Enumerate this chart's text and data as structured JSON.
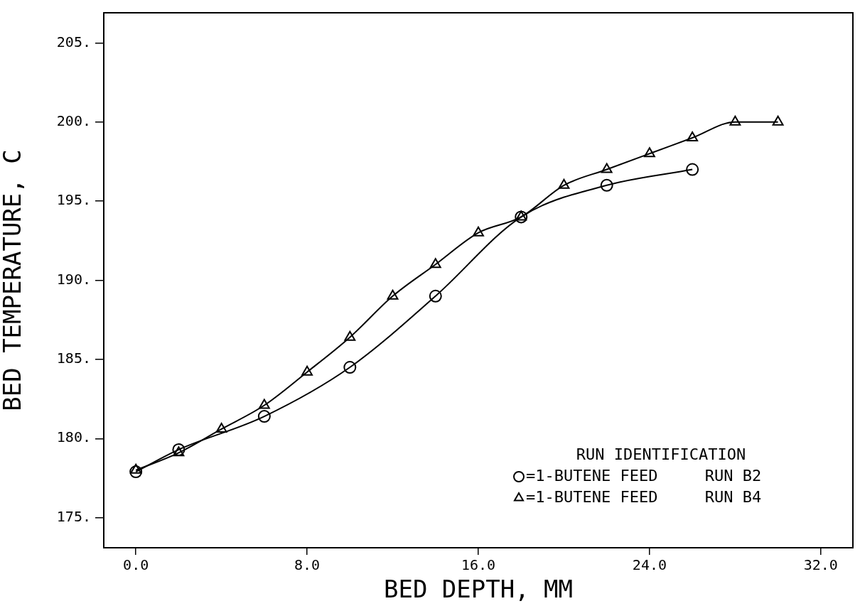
{
  "chart_data": {
    "type": "line",
    "xlabel": "BED DEPTH, MM",
    "ylabel": "BED TEMPERATURE, C",
    "legend_title": "RUN IDENTIFICATION",
    "legend": "bottom right",
    "xlim": [
      -1.5,
      33.5
    ],
    "ylim": [
      173.1,
      206.9
    ],
    "xticks": [
      {
        "value": 0,
        "label": "0.0"
      },
      {
        "value": 8,
        "label": "8.0"
      },
      {
        "value": 16,
        "label": "16.0"
      },
      {
        "value": 24,
        "label": "24.0"
      },
      {
        "value": 32,
        "label": "32.0"
      }
    ],
    "yticks": [
      {
        "value": 175,
        "label": "175."
      },
      {
        "value": 180,
        "label": "180."
      },
      {
        "value": 185,
        "label": "185."
      },
      {
        "value": 190,
        "label": "190."
      },
      {
        "value": 195,
        "label": "195."
      },
      {
        "value": 200,
        "label": "200."
      },
      {
        "value": 205,
        "label": "205."
      }
    ],
    "grid": false,
    "line_style": "solid",
    "series": [
      {
        "name": "=1-BUTENE FEED     RUN B2",
        "color": "#000000",
        "marker": "circle",
        "x": [
          0,
          2,
          6,
          10,
          14,
          18,
          22,
          26
        ],
        "values": [
          177.9,
          179.3,
          181.4,
          184.5,
          189.0,
          194.0,
          196.0,
          197.0
        ]
      },
      {
        "name": "=1-BUTENE FEED     RUN B4",
        "color": "#000000",
        "marker": "triangle",
        "x": [
          0,
          2,
          4,
          6,
          8,
          10,
          12,
          14,
          16,
          18,
          20,
          22,
          24,
          26,
          28,
          30
        ],
        "values": [
          178.0,
          179.1,
          180.6,
          182.1,
          184.2,
          186.4,
          189.0,
          191.0,
          193.0,
          194.0,
          196.0,
          197.0,
          198.0,
          199.0,
          200.0,
          200.0
        ]
      }
    ]
  }
}
